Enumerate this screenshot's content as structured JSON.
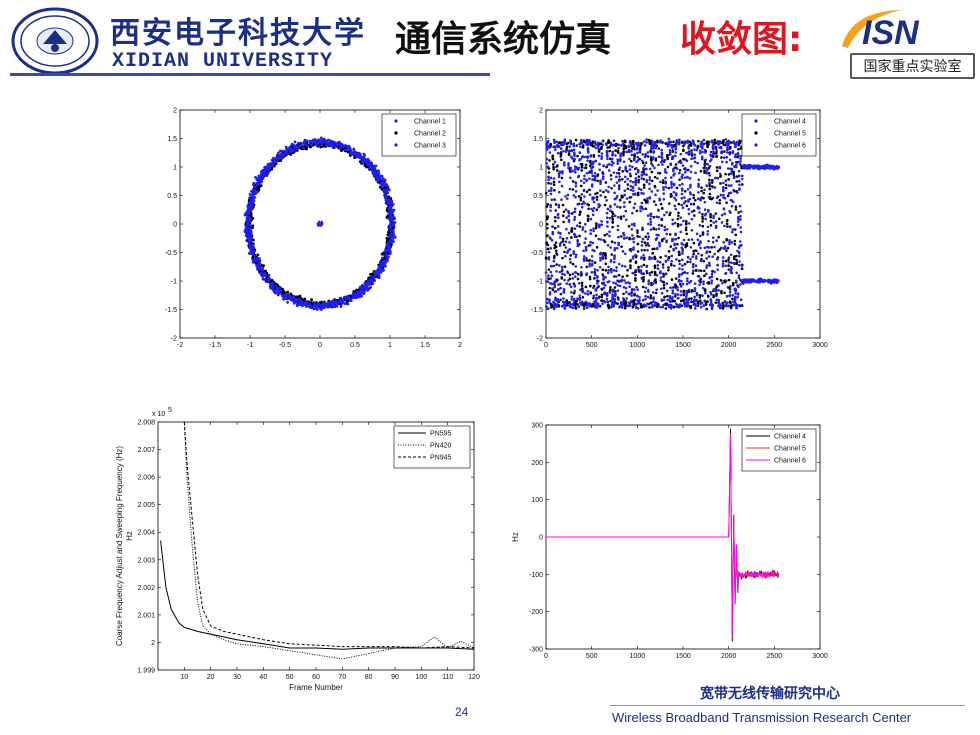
{
  "header": {
    "university_cn": "西安电子科技大学",
    "university_en": "XIDIAN UNIVERSITY",
    "title_main": "通信系统仿真",
    "title_sub": "收敛图:",
    "isn_logo_text": "ISN",
    "isn_caption": "国家重点实验室"
  },
  "footer": {
    "center_cn": "宽带无线传输研究中心",
    "center_en": "Wireless Broadband Transmission Research Center",
    "page_number": "24"
  },
  "colors": {
    "brand_blue": "#1a2f86",
    "title_red": "#e0151d",
    "channel_blue": "#1f1ff0",
    "channel_black": "#000000",
    "channel_red": "#ff2a2a",
    "channel_magenta": "#ff00ff"
  },
  "chart_data": [
    {
      "id": "constellation",
      "type": "scatter",
      "xlim": [
        -2,
        2
      ],
      "ylim": [
        -2,
        2
      ],
      "xticks": [
        "-2",
        "-1.5",
        "-1",
        "-0.5",
        "0",
        "0.5",
        "1",
        "1.5",
        "2"
      ],
      "yticks": [
        "-2",
        "-1.5",
        "-1",
        "-0.5",
        "0",
        "0.5",
        "1",
        "1.5",
        "2"
      ],
      "legend_position": "top-right",
      "series": [
        {
          "name": "Channel 1",
          "color": "#1f1ff0",
          "shape": "ring",
          "radius": 1.45,
          "points": 700
        },
        {
          "name": "Channel 2",
          "color": "#000000",
          "shape": "ring",
          "radius": 1.4,
          "points": 700
        },
        {
          "name": "Channel 3",
          "color": "#1f1ff0",
          "shape": "ring",
          "radius": 1.42,
          "points": 700
        }
      ],
      "center_cluster": {
        "x": 0,
        "y": 0,
        "spread": 0.05
      }
    },
    {
      "id": "channel-waves",
      "type": "scatter",
      "xlim": [
        0,
        3000
      ],
      "ylim": [
        -2,
        2
      ],
      "xticks": [
        "0",
        "500",
        "1000",
        "1500",
        "2000",
        "2500",
        "3000"
      ],
      "yticks": [
        "-2",
        "-1.5",
        "-1",
        "-0.5",
        "0",
        "0.5",
        "1",
        "1.5",
        "2"
      ],
      "legend_position": "top-right",
      "series": [
        {
          "name": "Channel 4",
          "color": "#1f1ff0"
        },
        {
          "name": "Channel 5",
          "color": "#000000"
        },
        {
          "name": "Channel 6",
          "color": "#1f1ff0"
        }
      ],
      "oscillation_end": 2150,
      "data_end": 2550,
      "amplitude": 1.45,
      "settled_levels": [
        1.0,
        -1.0
      ],
      "cycles": 12
    },
    {
      "id": "frequency-convergence",
      "type": "line",
      "xlim": [
        0,
        120
      ],
      "ylim": [
        1.999,
        2.008
      ],
      "xticks": [
        "10",
        "20",
        "30",
        "40",
        "50",
        "60",
        "70",
        "80",
        "90",
        "100",
        "110",
        "120"
      ],
      "yticks": [
        "1.999",
        "2",
        "2.001",
        "2.002",
        "2.003",
        "2.004",
        "2.005",
        "2.006",
        "2.007",
        "2.008"
      ],
      "y_exponent_label": "x 10",
      "y_exponent": "5",
      "xlabel": "Frame Number",
      "ylabel": "Coarse Frequency Adjust and Sweeping Frequency (Hz)",
      "ylabel_overlay": "Hz",
      "legend_position": "top-right",
      "series": [
        {
          "name": "PN595",
          "style": "solid",
          "x": [
            1,
            3,
            5,
            8,
            10,
            15,
            20,
            30,
            40,
            50,
            60,
            70,
            80,
            90,
            100,
            110,
            120
          ],
          "y": [
            2.0037,
            2.002,
            2.0012,
            2.0007,
            2.00055,
            2.0004,
            2.0003,
            2.0001,
            1.99995,
            1.9998,
            1.9998,
            1.99975,
            1.9998,
            1.9998,
            1.9998,
            1.9998,
            1.99975
          ]
        },
        {
          "name": "PN420",
          "style": "dotted",
          "x": [
            10,
            11,
            13,
            15,
            17,
            20,
            25,
            30,
            40,
            50,
            60,
            70,
            80,
            90,
            100,
            105,
            110,
            115,
            120
          ],
          "y": [
            2.008,
            2.006,
            2.0035,
            2.0015,
            2.0006,
            2.0003,
            2.0001,
            1.99995,
            1.99985,
            1.9997,
            1.99955,
            1.9994,
            1.9996,
            1.9998,
            1.99985,
            2.0002,
            1.9998,
            2.00005,
            1.9998
          ]
        },
        {
          "name": "PN945",
          "style": "dashed",
          "x": [
            10,
            11,
            13,
            15,
            17,
            20,
            25,
            30,
            40,
            50,
            60,
            70,
            80,
            90,
            100,
            110,
            120
          ],
          "y": [
            2.008,
            2.0065,
            2.0045,
            2.0025,
            2.0012,
            2.0006,
            2.0004,
            2.0003,
            2.0001,
            1.99995,
            1.9999,
            1.99985,
            1.99985,
            1.99985,
            1.9998,
            1.99985,
            1.9998
          ]
        }
      ]
    },
    {
      "id": "frequency-error",
      "type": "line",
      "xlim": [
        0,
        3000
      ],
      "ylim": [
        -300,
        300
      ],
      "xticks": [
        "0",
        "500",
        "1000",
        "1500",
        "2000",
        "2500",
        "3000"
      ],
      "yticks": [
        "-300",
        "-200",
        "-100",
        "0",
        "100",
        "200",
        "300"
      ],
      "ylabel": "Hz",
      "legend_position": "top-right",
      "series": [
        {
          "name": "Channel 4",
          "color": "#000000"
        },
        {
          "name": "Channel 5",
          "color": "#ff2a2a"
        },
        {
          "name": "Channel 6",
          "color": "#ff00ff"
        }
      ],
      "flat_until": 2000,
      "spike_up": 290,
      "spike_down": -280,
      "settled_value": -100,
      "data_end": 2550
    }
  ]
}
